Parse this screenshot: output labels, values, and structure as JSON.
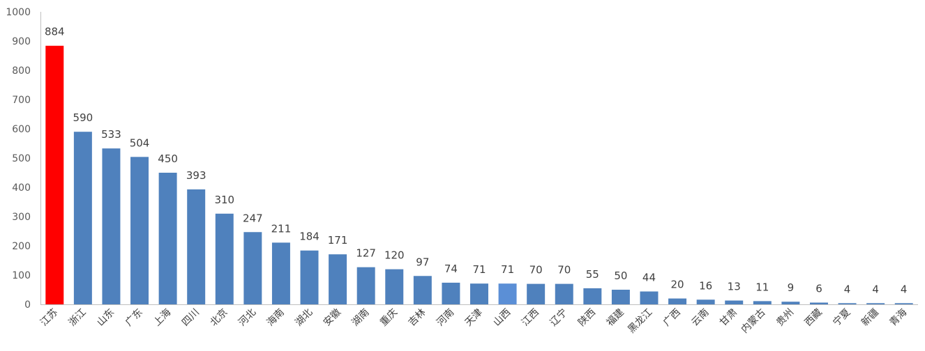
{
  "chart_data": {
    "type": "bar",
    "title": "",
    "xlabel": "",
    "ylabel": "",
    "ylim": [
      0,
      1000
    ],
    "yticks": [
      0,
      100,
      200,
      300,
      400,
      500,
      600,
      700,
      800,
      900,
      1000
    ],
    "grid": false,
    "legend": "none",
    "categories": [
      "江苏",
      "浙江",
      "山东",
      "广东",
      "上海",
      "四川",
      "北京",
      "河北",
      "海南",
      "湖北",
      "安徽",
      "湖南",
      "重庆",
      "吉林",
      "河南",
      "天津",
      "山西",
      "江西",
      "辽宁",
      "陕西",
      "福建",
      "黑龙江",
      "广西",
      "云南",
      "甘肃",
      "内蒙古",
      "贵州",
      "西藏",
      "宁夏",
      "新疆",
      "青海"
    ],
    "values": [
      884,
      590,
      533,
      504,
      450,
      393,
      310,
      247,
      211,
      184,
      171,
      127,
      120,
      97,
      74,
      71,
      71,
      70,
      70,
      55,
      50,
      44,
      20,
      16,
      13,
      11,
      9,
      6,
      4,
      4,
      4
    ],
    "colors": {
      "default": "#4f81bd",
      "highlight": "#ff0000",
      "highlight_alt": "#5b8fd6",
      "axis": "#bfbfbf"
    },
    "highlight_index": 0,
    "highlight_alt_index": 16
  }
}
